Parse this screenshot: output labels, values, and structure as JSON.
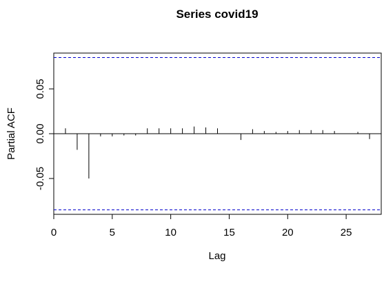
{
  "chart_data": {
    "type": "bar",
    "title": "Series  covid19",
    "xlabel": "Lag",
    "ylabel": "Partial ACF",
    "xlim": [
      0,
      28
    ],
    "ylim": [
      -0.09,
      0.09
    ],
    "x_ticks": [
      0,
      5,
      10,
      15,
      20,
      25
    ],
    "x_tick_labels": [
      "0",
      "5",
      "10",
      "15",
      "20",
      "25"
    ],
    "y_ticks": [
      -0.05,
      0.0,
      0.05
    ],
    "y_tick_labels": [
      "-0.05",
      "0.00",
      "0.05"
    ],
    "confidence_bound": 0.085,
    "confidence_color": "#0000cc",
    "bar_color": "#000000",
    "lags": [
      1,
      2,
      3,
      4,
      5,
      6,
      7,
      8,
      9,
      10,
      11,
      12,
      13,
      14,
      15,
      16,
      17,
      18,
      19,
      20,
      21,
      22,
      23,
      24,
      25,
      26,
      27
    ],
    "values": [
      0.006,
      -0.018,
      -0.05,
      -0.003,
      -0.003,
      -0.002,
      -0.002,
      0.006,
      0.006,
      0.006,
      0.006,
      0.008,
      0.007,
      0.006,
      0.0,
      -0.007,
      0.005,
      0.003,
      0.002,
      0.003,
      0.004,
      0.004,
      0.004,
      0.003,
      0.0,
      0.002,
      -0.006
    ]
  }
}
